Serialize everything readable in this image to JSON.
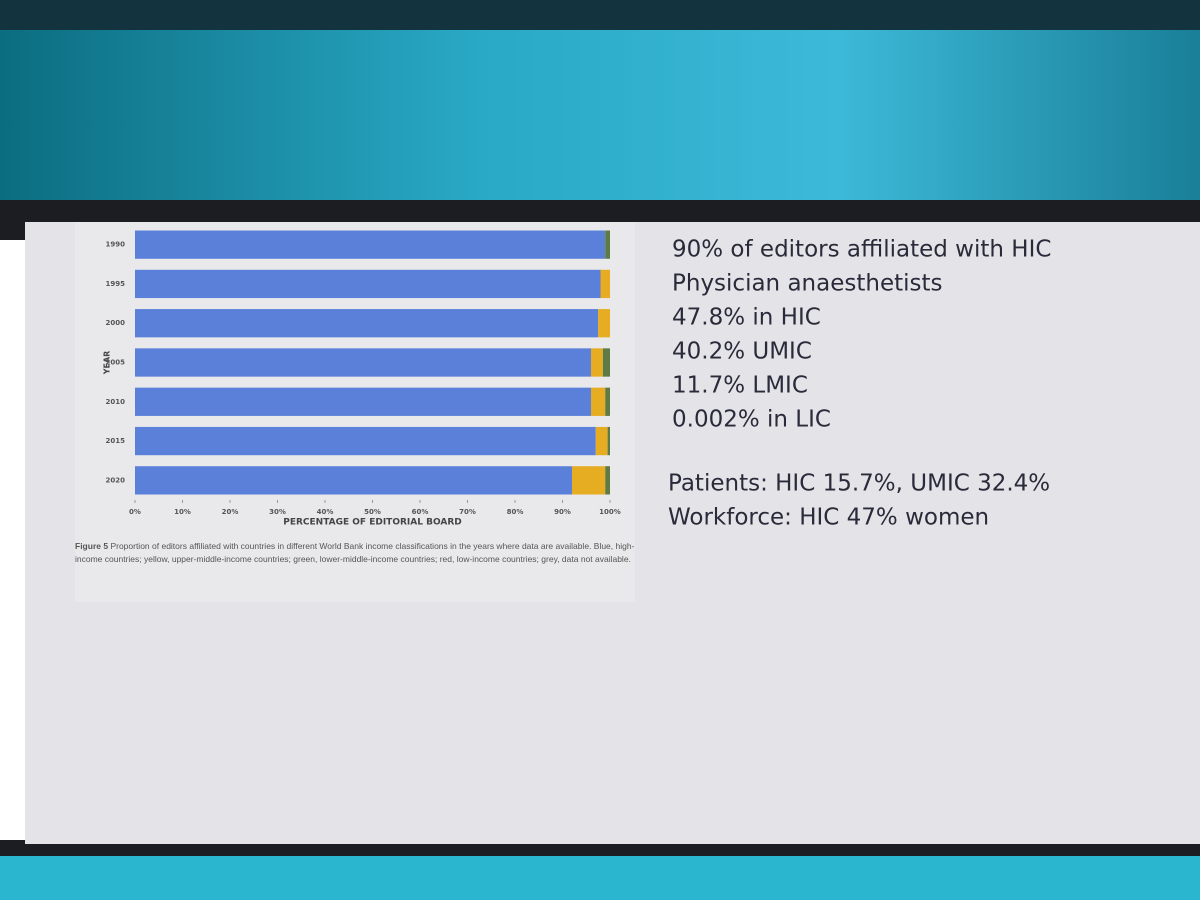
{
  "chart_data": {
    "type": "stacked-barh",
    "categories": [
      "1990",
      "1995",
      "2000",
      "2005",
      "2010",
      "2015",
      "2020"
    ],
    "series": [
      {
        "color": "#5b80d9",
        "values": [
          99,
          98,
          97.5,
          96,
          96,
          97,
          92
        ]
      },
      {
        "color": "#e6ac22",
        "values": [
          0,
          2,
          2.5,
          2.5,
          3,
          2.5,
          7
        ]
      },
      {
        "color": "#5e7a45",
        "values": [
          1,
          0,
          0,
          1.5,
          1,
          0.5,
          1
        ]
      }
    ],
    "xlim": [
      0,
      100
    ],
    "xticks": [
      {
        "value": 0,
        "label": "0%"
      },
      {
        "value": 10,
        "label": "10%"
      },
      {
        "value": 20,
        "label": "20%"
      },
      {
        "value": 30,
        "label": "30%"
      },
      {
        "value": 40,
        "label": "40%"
      },
      {
        "value": 50,
        "label": "50%"
      },
      {
        "value": 60,
        "label": "60%"
      },
      {
        "value": 70,
        "label": "70%"
      },
      {
        "value": 80,
        "label": "80%"
      },
      {
        "value": 90,
        "label": "90%"
      },
      {
        "value": 100,
        "label": "100%"
      }
    ],
    "xlabel": "PERCENTAGE OF EDITORIAL BOARD",
    "ylabel": "YEAR",
    "caption_label": "Figure 5",
    "caption": "Proportion of editors affiliated with countries in different World Bank income classifications in the years where data are available. Blue, high-income countries; yellow, upper-middle-income countries; green, lower-middle-income countries; red, low-income countries; grey, data not available."
  },
  "slide": {
    "points": [
      "90% of editors affiliated with HIC",
      "Physician anaesthetists",
      "47.8% in HIC",
      "40.2% UMIC",
      "11.7% LMIC",
      "0.002% in LIC"
    ],
    "notes": [
      "Patients: HIC 15.7%, UMIC 32.4%",
      "Workforce: HIC 47% women"
    ]
  }
}
